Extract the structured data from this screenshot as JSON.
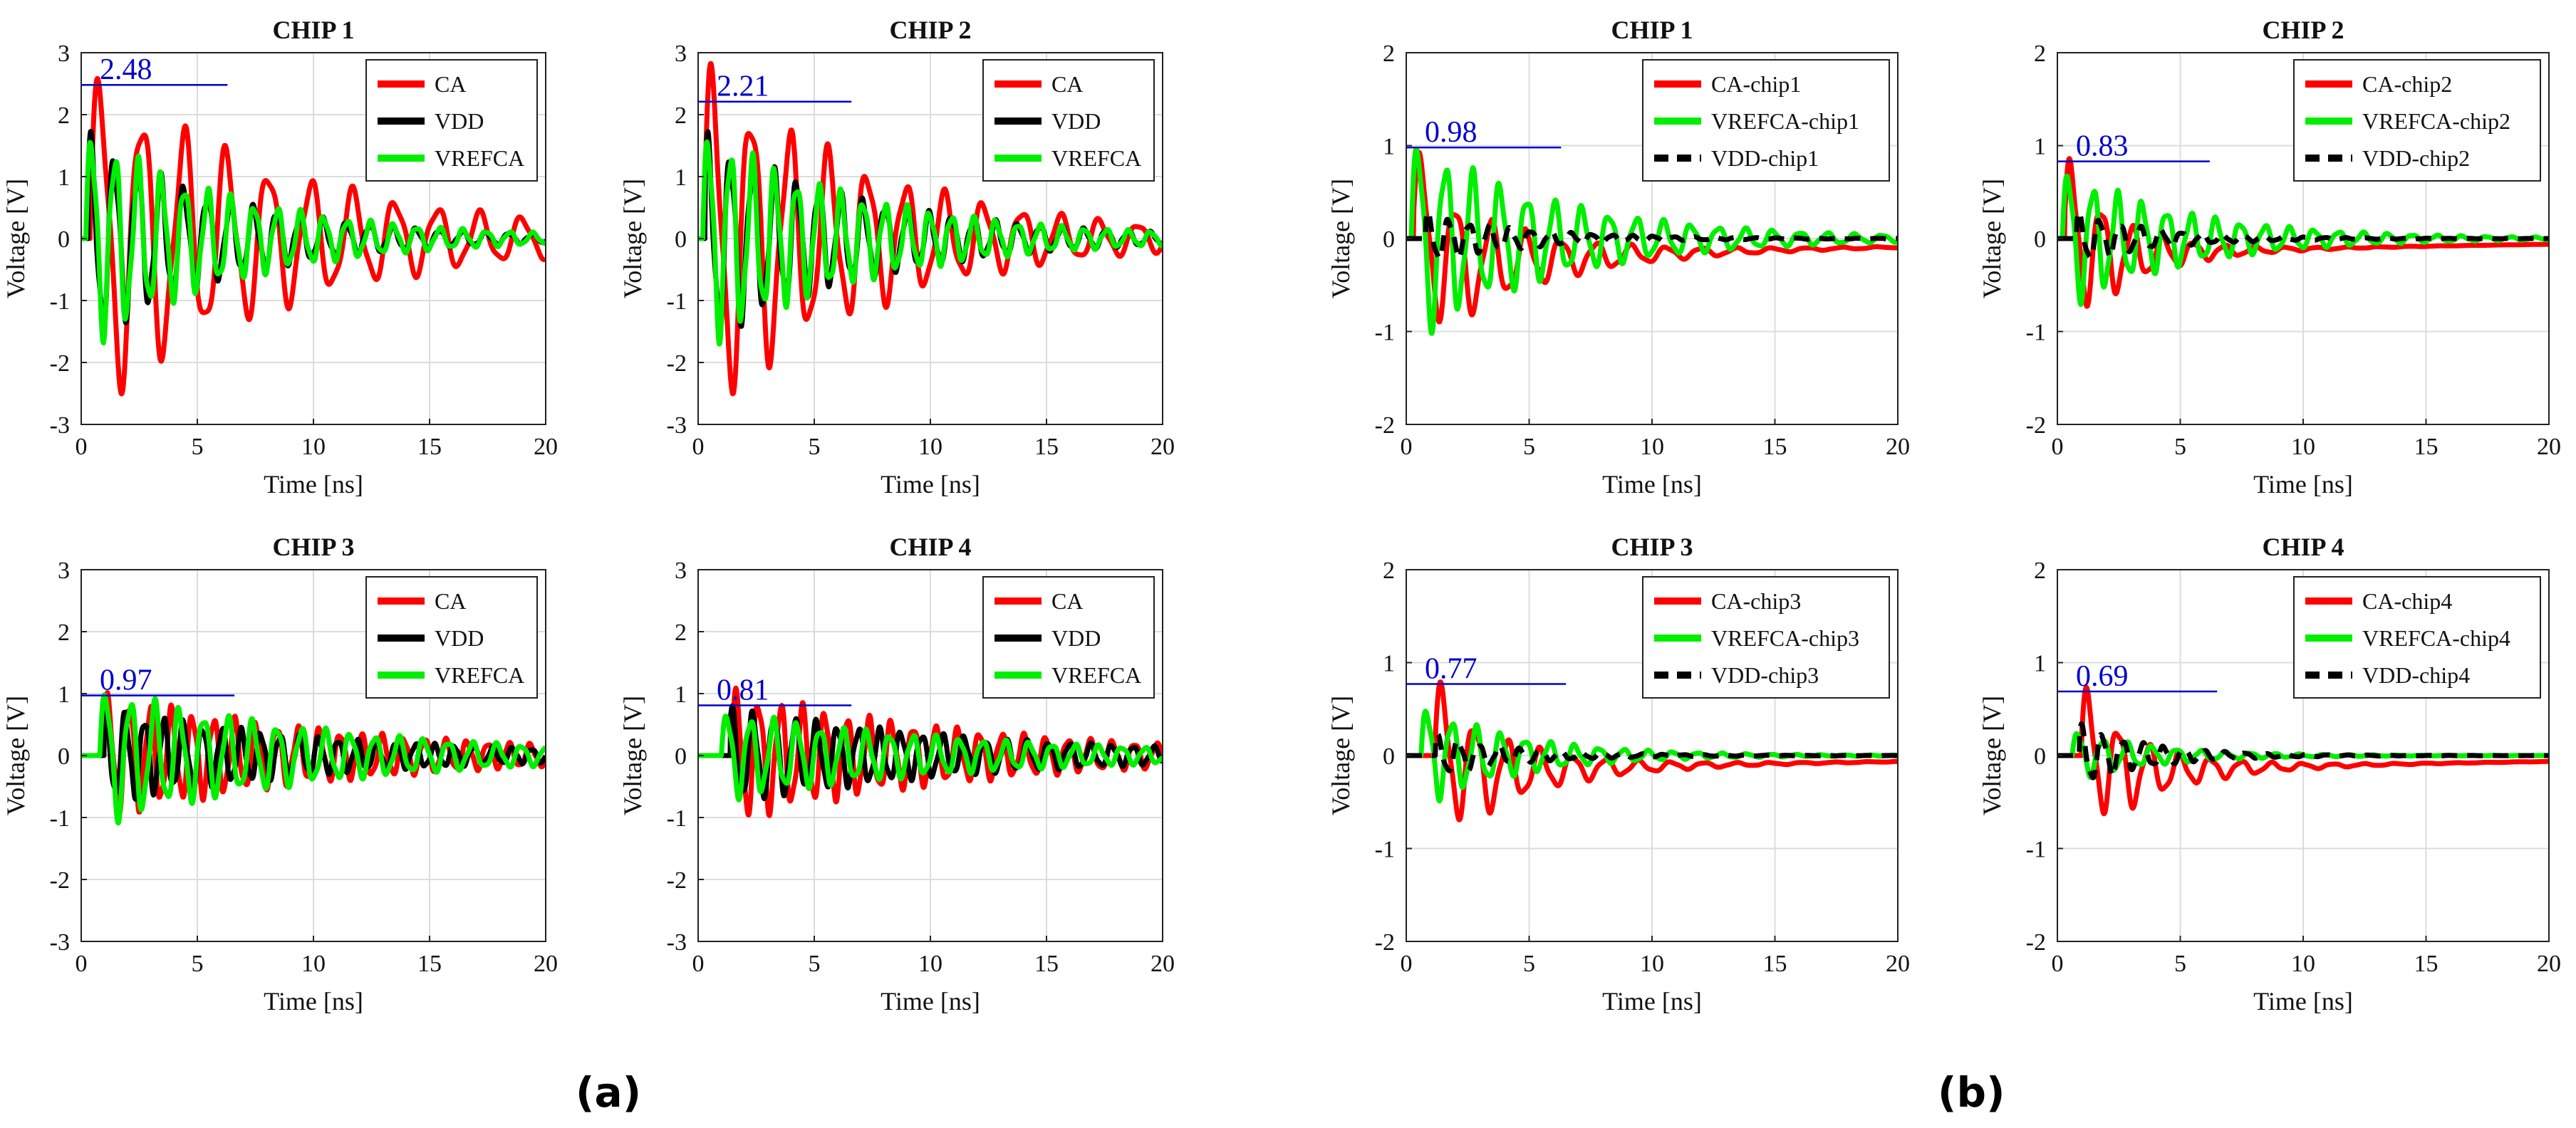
{
  "figure": {
    "panel_labels": [
      "(a)",
      "(b)"
    ],
    "colors": {
      "CA": "#ff0000",
      "VDD": "#000000",
      "VREFCA": "#00ee00",
      "marker": "#0000cc",
      "grid": "#dcdcdc"
    }
  },
  "chart_data": [
    {
      "type": "line",
      "group": "a",
      "title": "CHIP 1",
      "xlabel": "Time [ns]",
      "ylabel": "Voltage [V]",
      "xlim": [
        0,
        20
      ],
      "ylim": [
        -3,
        3
      ],
      "xticks": [
        0,
        5,
        10,
        15,
        20
      ],
      "yticks": [
        -3,
        -2,
        -1,
        0,
        1,
        2,
        3
      ],
      "peak_label": "2.48",
      "peak_value": 2.48,
      "peak_line_x": [
        0,
        6.3
      ],
      "legend": [
        "CA",
        "VDD",
        "VREFCA"
      ],
      "series": [
        {
          "name": "CA",
          "key": "CA",
          "dash": false,
          "amp": 2.5,
          "decay": 0.11,
          "freq": 0.55,
          "phase": 0.2,
          "offset": 0,
          "start": 0.4
        },
        {
          "name": "VDD",
          "key": "VDD",
          "dash": false,
          "amp": 1.5,
          "decay": 0.16,
          "freq": 1.0,
          "phase": 0.8,
          "offset": 0,
          "start": 0.3
        },
        {
          "name": "VREFCA",
          "key": "VREFCA",
          "dash": false,
          "amp": 1.6,
          "decay": 0.15,
          "freq": 1.0,
          "phase": 0.0,
          "offset": 0,
          "start": 0.2
        }
      ]
    },
    {
      "type": "line",
      "group": "a",
      "title": "CHIP 2",
      "xlabel": "Time [ns]",
      "ylabel": "Voltage [V]",
      "xlim": [
        0,
        20
      ],
      "ylim": [
        -3,
        3
      ],
      "xticks": [
        0,
        5,
        10,
        15,
        20
      ],
      "yticks": [
        -3,
        -2,
        -1,
        0,
        1,
        2,
        3
      ],
      "peak_label": "2.21",
      "peak_value": 2.21,
      "peak_line_x": [
        0,
        6.6
      ],
      "legend": [
        "CA",
        "VDD",
        "VREFCA"
      ],
      "series": [
        {
          "name": "CA",
          "key": "CA",
          "dash": false,
          "amp": 2.6,
          "decay": 0.13,
          "freq": 0.6,
          "phase": 0.4,
          "offset": 0,
          "start": 0.3
        },
        {
          "name": "VDD",
          "key": "VDD",
          "dash": false,
          "amp": 1.5,
          "decay": 0.14,
          "freq": 1.05,
          "phase": 0.7,
          "offset": 0,
          "start": 0.3
        },
        {
          "name": "VREFCA",
          "key": "VREFCA",
          "dash": false,
          "amp": 1.6,
          "decay": 0.14,
          "freq": 1.05,
          "phase": 0.0,
          "offset": 0,
          "start": 0.2
        }
      ]
    },
    {
      "type": "line",
      "group": "a",
      "title": "CHIP 3",
      "xlabel": "Time [ns]",
      "ylabel": "Voltage [V]",
      "xlim": [
        0,
        20
      ],
      "ylim": [
        -3,
        3
      ],
      "xticks": [
        0,
        5,
        10,
        15,
        20
      ],
      "yticks": [
        -3,
        -2,
        -1,
        0,
        1,
        2,
        3
      ],
      "peak_label": "0.97",
      "peak_value": 0.97,
      "peak_line_x": [
        0,
        6.6
      ],
      "legend": [
        "CA",
        "VDD",
        "VREFCA"
      ],
      "series": [
        {
          "name": "CA",
          "key": "CA",
          "dash": false,
          "amp": 0.9,
          "decay": 0.09,
          "freq": 1.1,
          "phase": 0.5,
          "offset": 0,
          "start": 1.0
        },
        {
          "name": "VDD",
          "key": "VDD",
          "dash": false,
          "amp": 0.7,
          "decay": 0.1,
          "freq": 1.2,
          "phase": 1.1,
          "offset": 0,
          "start": 1.0
        },
        {
          "name": "VREFCA",
          "key": "VREFCA",
          "dash": false,
          "amp": 1.0,
          "decay": 0.1,
          "freq": 0.95,
          "phase": 0.0,
          "offset": 0,
          "start": 0.8
        }
      ]
    },
    {
      "type": "line",
      "group": "a",
      "title": "CHIP 4",
      "xlabel": "Time [ns]",
      "ylabel": "Voltage [V]",
      "xlim": [
        0,
        20
      ],
      "ylim": [
        -3,
        3
      ],
      "xticks": [
        0,
        5,
        10,
        15,
        20
      ],
      "yticks": [
        -3,
        -2,
        -1,
        0,
        1,
        2,
        3
      ],
      "peak_label": "0.81",
      "peak_value": 0.81,
      "peak_line_x": [
        0,
        6.6
      ],
      "legend": [
        "CA",
        "VDD",
        "VREFCA"
      ],
      "series": [
        {
          "name": "CA",
          "key": "CA",
          "dash": false,
          "amp": 0.95,
          "decay": 0.09,
          "freq": 1.05,
          "phase": 0.6,
          "offset": 0,
          "start": 1.5
        },
        {
          "name": "VDD",
          "key": "VDD",
          "dash": false,
          "amp": 0.7,
          "decay": 0.09,
          "freq": 1.1,
          "phase": 1.2,
          "offset": 0,
          "start": 1.4
        },
        {
          "name": "VREFCA",
          "key": "VREFCA",
          "dash": false,
          "amp": 0.65,
          "decay": 0.09,
          "freq": 1.0,
          "phase": 0.0,
          "offset": 0,
          "start": 1.0
        }
      ]
    },
    {
      "type": "line",
      "group": "b",
      "title": "CHIP 1",
      "xlabel": "Time [ns]",
      "ylabel": "Voltage [V]",
      "xlim": [
        0,
        20
      ],
      "ylim": [
        -2,
        2
      ],
      "xticks": [
        0,
        5,
        10,
        15,
        20
      ],
      "yticks": [
        -2,
        -1,
        0,
        1,
        2
      ],
      "peak_label": "0.98",
      "peak_value": 0.98,
      "peak_line_x": [
        0,
        6.3
      ],
      "legend": [
        "CA-chip1",
        "VREFCA-chip1",
        "VDD-chip1"
      ],
      "series": [
        {
          "name": "CA-chip1",
          "key": "CA",
          "dash": false,
          "amp": 0.9,
          "decay": 0.25,
          "freq": 0.7,
          "phase": 0.3,
          "offset": -0.3,
          "start": 0.3
        },
        {
          "name": "VREFCA-chip1",
          "key": "VREFCA",
          "dash": false,
          "amp": 1.0,
          "decay": 0.17,
          "freq": 0.9,
          "phase": 0.0,
          "offset": 0,
          "start": 0.2
        },
        {
          "name": "VDD-chip1",
          "key": "VDD",
          "dash": true,
          "amp": 0.25,
          "decay": 0.25,
          "freq": 1.2,
          "phase": 0.9,
          "offset": 0,
          "start": 0.8
        }
      ]
    },
    {
      "type": "line",
      "group": "b",
      "title": "CHIP 2",
      "xlabel": "Time [ns]",
      "ylabel": "Voltage [V]",
      "xlim": [
        0,
        20
      ],
      "ylim": [
        -2,
        2
      ],
      "xticks": [
        0,
        5,
        10,
        15,
        20
      ],
      "yticks": [
        -2,
        -1,
        0,
        1,
        2
      ],
      "peak_label": "0.83",
      "peak_value": 0.83,
      "peak_line_x": [
        0,
        6.2
      ],
      "legend": [
        "CA-chip2",
        "VREFCA-chip2",
        "VDD-chip2"
      ],
      "series": [
        {
          "name": "CA-chip2",
          "key": "CA",
          "dash": false,
          "amp": 0.85,
          "decay": 0.4,
          "freq": 0.8,
          "phase": 0.3,
          "offset": -0.2,
          "start": 0.3
        },
        {
          "name": "VREFCA-chip2",
          "key": "VREFCA",
          "dash": false,
          "amp": 0.7,
          "decay": 0.2,
          "freq": 1.0,
          "phase": 0.0,
          "offset": 0,
          "start": 0.2
        },
        {
          "name": "VDD-chip2",
          "key": "VDD",
          "dash": true,
          "amp": 0.25,
          "decay": 0.3,
          "freq": 1.2,
          "phase": 0.9,
          "offset": 0,
          "start": 0.8
        }
      ]
    },
    {
      "type": "line",
      "group": "b",
      "title": "CHIP 3",
      "xlabel": "Time [ns]",
      "ylabel": "Voltage [V]",
      "xlim": [
        0,
        20
      ],
      "ylim": [
        -2,
        2
      ],
      "xticks": [
        0,
        5,
        10,
        15,
        20
      ],
      "yticks": [
        -2,
        -1,
        0,
        1,
        2
      ],
      "peak_label": "0.77",
      "peak_value": 0.77,
      "peak_line_x": [
        0,
        6.5
      ],
      "legend": [
        "CA-chip3",
        "VREFCA-chip3",
        "VDD-chip3"
      ],
      "series": [
        {
          "name": "CA-chip3",
          "key": "CA",
          "dash": false,
          "amp": 0.75,
          "decay": 0.3,
          "freq": 0.75,
          "phase": 0.4,
          "offset": -0.2,
          "start": 1.2
        },
        {
          "name": "VREFCA-chip3",
          "key": "VREFCA",
          "dash": false,
          "amp": 0.5,
          "decay": 0.25,
          "freq": 1.0,
          "phase": 0.0,
          "offset": 0,
          "start": 0.6
        },
        {
          "name": "VDD-chip3",
          "key": "VDD",
          "dash": true,
          "amp": 0.2,
          "decay": 0.3,
          "freq": 1.2,
          "phase": 0.9,
          "offset": 0,
          "start": 1.2
        }
      ]
    },
    {
      "type": "line",
      "group": "b",
      "title": "CHIP 4",
      "xlabel": "Time [ns]",
      "ylabel": "Voltage [V]",
      "xlim": [
        0,
        20
      ],
      "ylim": [
        -2,
        2
      ],
      "xticks": [
        0,
        5,
        10,
        15,
        20
      ],
      "yticks": [
        -2,
        -1,
        0,
        1,
        2
      ],
      "peak_label": "0.69",
      "peak_value": 0.69,
      "peak_line_x": [
        0,
        6.5
      ],
      "legend": [
        "CA-chip4",
        "VREFCA-chip4",
        "VDD-chip4"
      ],
      "series": [
        {
          "name": "CA-chip4",
          "key": "CA",
          "dash": false,
          "amp": 0.7,
          "decay": 0.35,
          "freq": 0.8,
          "phase": 0.4,
          "offset": -0.2,
          "start": 1.0
        },
        {
          "name": "VREFCA-chip4",
          "key": "VREFCA",
          "dash": false,
          "amp": 0.25,
          "decay": 0.3,
          "freq": 1.0,
          "phase": 0.0,
          "offset": 0,
          "start": 0.6
        },
        {
          "name": "VDD-chip4",
          "key": "VDD",
          "dash": true,
          "amp": 0.3,
          "decay": 0.35,
          "freq": 1.2,
          "phase": 0.9,
          "offset": 0,
          "start": 0.9
        }
      ]
    }
  ]
}
